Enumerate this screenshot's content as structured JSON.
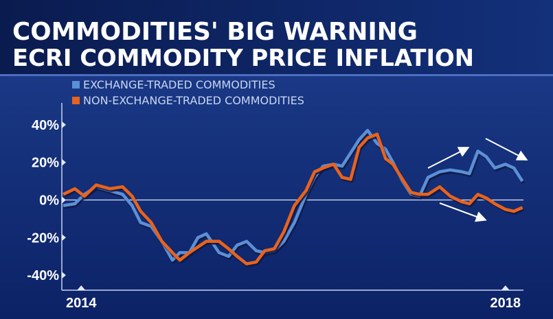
{
  "header": {
    "title": "COMMODITIES' BIG WARNING",
    "subtitle": "ECRI COMMODITY PRICE INFLATION"
  },
  "chart_data": {
    "type": "line",
    "x": [
      2013.83,
      2013.94,
      2014.03,
      2014.14,
      2014.27,
      2014.39,
      2014.48,
      2014.56,
      2014.66,
      2014.76,
      2014.86,
      2014.93,
      2015.02,
      2015.1,
      2015.18,
      2015.3,
      2015.39,
      2015.47,
      2015.56,
      2015.65,
      2015.73,
      2015.82,
      2015.91,
      2016.01,
      2016.12,
      2016.2,
      2016.28,
      2016.38,
      2016.46,
      2016.54,
      2016.62,
      2016.7,
      2016.79,
      2016.87,
      2016.94,
      2017.03,
      2017.11,
      2017.19,
      2017.27,
      2017.38,
      2017.48,
      2017.59,
      2017.66,
      2017.74,
      2017.82,
      2017.9,
      2018.0,
      2018.08,
      2018.16
    ],
    "series": [
      {
        "name": "EXCHANGE-TRADED COMMODITIES",
        "color": "#5b8fd6",
        "values": [
          -3,
          -2,
          3,
          7,
          5,
          3,
          -3,
          -12,
          -14,
          -22,
          -32,
          -28,
          -28,
          -20,
          -18,
          -28,
          -30,
          -24,
          -22,
          -27,
          -28,
          -27,
          -22,
          -12,
          3,
          12,
          18,
          19,
          18,
          25,
          32,
          37,
          30,
          27,
          20,
          10,
          3,
          2,
          12,
          15,
          16,
          15,
          14,
          26,
          23,
          17,
          19,
          17,
          10
        ]
      },
      {
        "name": "NON-EXCHANGE-TRADED COMMODITIES",
        "color": "#e8641e",
        "values": [
          3,
          6,
          2,
          8,
          6,
          7,
          2,
          -6,
          -12,
          -22,
          -28,
          -32,
          -28,
          -25,
          -22,
          -22,
          -26,
          -30,
          -34,
          -33,
          -27,
          -26,
          -17,
          -3,
          5,
          15,
          17,
          19,
          12,
          11,
          28,
          33,
          35,
          22,
          19,
          11,
          4,
          3,
          3,
          7,
          2,
          -1,
          -2,
          3,
          1,
          -2,
          -5,
          -6,
          -4
        ]
      }
    ],
    "xlim": [
      2013.83,
      2018.17
    ],
    "xticks": [
      2014,
      2018
    ],
    "ylim": [
      -48,
      48
    ],
    "yticks": [
      {
        "value": 40,
        "label": "40%"
      },
      {
        "value": 20,
        "label": "20%"
      },
      {
        "value": 0,
        "label": "0%"
      },
      {
        "value": -20,
        "label": "-20%"
      },
      {
        "value": -40,
        "label": "-40%"
      }
    ]
  }
}
